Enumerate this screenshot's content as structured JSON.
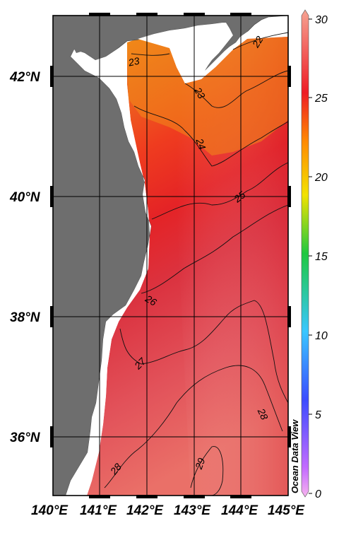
{
  "map": {
    "watermark": "Ocean Data View",
    "lat_ticks": [
      {
        "value": 36,
        "label": "36°N"
      },
      {
        "value": 38,
        "label": "38°N"
      },
      {
        "value": 40,
        "label": "40°N"
      },
      {
        "value": 42,
        "label": "42°N"
      }
    ],
    "lon_ticks": [
      {
        "value": 140,
        "label": "140°E"
      },
      {
        "value": 141,
        "label": "141°E"
      },
      {
        "value": 142,
        "label": "142°E"
      },
      {
        "value": 143,
        "label": "143°E"
      },
      {
        "value": 144,
        "label": "144°E"
      },
      {
        "value": 145,
        "label": "145°E"
      }
    ],
    "extent": {
      "lon": [
        140,
        145
      ],
      "lat": [
        35,
        43
      ]
    },
    "contour_labels": [
      "22",
      "23",
      "23",
      "24",
      "25",
      "26",
      "27",
      "28",
      "28",
      "29"
    ],
    "colors": {
      "land": "#6e6e6e",
      "ocean_no_data": "#ffffff"
    }
  },
  "colorbar": {
    "ticks": [
      "0",
      "5",
      "10",
      "15",
      "20",
      "25",
      "30"
    ],
    "range": [
      0,
      30
    ],
    "stops": [
      "#f7b3ee",
      "#c36bff",
      "#3b4cff",
      "#39c7ff",
      "#1fc840",
      "#f2e200",
      "#ff8a00",
      "#ee1c25",
      "#f6a392"
    ]
  }
}
